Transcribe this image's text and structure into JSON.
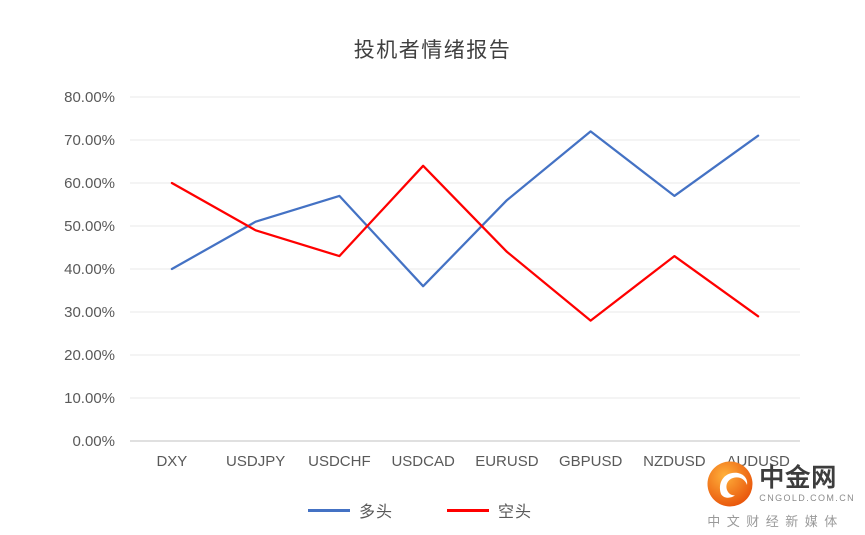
{
  "chart_data": {
    "type": "line",
    "title": "投机者情绪报告",
    "categories": [
      "DXY",
      "USDJPY",
      "USDCHF",
      "USDCAD",
      "EURUSD",
      "GBPUSD",
      "NZDUSD",
      "AUDUSD"
    ],
    "series": [
      {
        "name": "多头",
        "color": "#4472c4",
        "values": [
          40,
          51,
          57,
          36,
          56,
          72,
          57,
          71
        ]
      },
      {
        "name": "空头",
        "color": "#ff0000",
        "values": [
          60,
          49,
          43,
          64,
          44,
          28,
          43,
          29
        ]
      }
    ],
    "ylim": [
      0,
      80
    ],
    "ytick_step": 10,
    "ytick_labels": [
      "0.00%",
      "10.00%",
      "20.00%",
      "30.00%",
      "40.00%",
      "50.00%",
      "60.00%",
      "70.00%",
      "80.00%"
    ],
    "grid": true,
    "legend_position": "bottom"
  },
  "watermark": {
    "brand": "中金网",
    "domain": "CNGOLD.COM.CN",
    "tagline": "中文财经新媒体",
    "logo_gradient": [
      "#ffb13b",
      "#e64a05"
    ]
  }
}
